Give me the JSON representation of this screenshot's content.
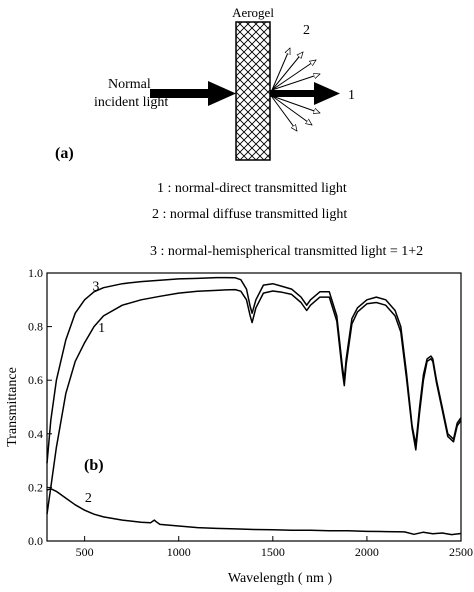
{
  "diagram": {
    "panel_label": "(a)",
    "sample_label": "Aerogel",
    "incident_label_line1": "Normal",
    "incident_label_line2": "incident light",
    "direct_ray_label": "1",
    "diffuse_ray_label": "2",
    "legend": [
      "1 : normal-direct transmitted light",
      "2 :  normal diffuse transmitted light",
      "3 : normal-hemispherical transmitted light = 1+2"
    ]
  },
  "chart_data": {
    "type": "line",
    "panel_label": "(b)",
    "title": "",
    "xlabel": "Wavelength ( nm )",
    "ylabel": "Transmittance",
    "xlim": [
      300,
      2500
    ],
    "ylim": [
      0.0,
      1.0
    ],
    "xticks": [
      500,
      1000,
      1500,
      2000,
      2500
    ],
    "yticks": [
      0.0,
      0.2,
      0.4,
      0.6,
      0.8,
      1.0
    ],
    "xtick_labels": [
      "500",
      "1000",
      "1500",
      "2000",
      "2500"
    ],
    "ytick_labels": [
      "0.0",
      "0.2",
      "0.4",
      "0.6",
      "0.8",
      "1.0"
    ],
    "grid": false,
    "series": [
      {
        "name": "3",
        "color": "#000000",
        "x": [
          300,
          320,
          350,
          400,
          450,
          500,
          550,
          600,
          700,
          800,
          900,
          1000,
          1100,
          1200,
          1250,
          1300,
          1330,
          1360,
          1380,
          1390,
          1410,
          1450,
          1500,
          1550,
          1600,
          1650,
          1680,
          1700,
          1750,
          1800,
          1840,
          1870,
          1880,
          1890,
          1920,
          1950,
          2000,
          2050,
          2100,
          2150,
          2180,
          2210,
          2240,
          2260,
          2280,
          2300,
          2320,
          2340,
          2350,
          2370,
          2400,
          2430,
          2460,
          2480,
          2500
        ],
        "y": [
          0.29,
          0.45,
          0.6,
          0.75,
          0.85,
          0.9,
          0.93,
          0.945,
          0.96,
          0.968,
          0.973,
          0.978,
          0.98,
          0.983,
          0.983,
          0.982,
          0.975,
          0.94,
          0.875,
          0.85,
          0.9,
          0.955,
          0.96,
          0.95,
          0.94,
          0.91,
          0.88,
          0.9,
          0.93,
          0.93,
          0.84,
          0.65,
          0.6,
          0.68,
          0.83,
          0.87,
          0.9,
          0.91,
          0.9,
          0.86,
          0.8,
          0.63,
          0.43,
          0.36,
          0.5,
          0.62,
          0.68,
          0.69,
          0.68,
          0.6,
          0.5,
          0.4,
          0.38,
          0.44,
          0.46
        ]
      },
      {
        "name": "1",
        "color": "#000000",
        "x": [
          300,
          320,
          350,
          400,
          450,
          500,
          550,
          600,
          700,
          800,
          900,
          1000,
          1100,
          1200,
          1250,
          1300,
          1330,
          1360,
          1380,
          1390,
          1410,
          1450,
          1500,
          1550,
          1600,
          1650,
          1680,
          1700,
          1750,
          1800,
          1840,
          1870,
          1880,
          1890,
          1920,
          1950,
          2000,
          2050,
          2100,
          2150,
          2180,
          2210,
          2240,
          2260,
          2280,
          2300,
          2320,
          2340,
          2350,
          2370,
          2400,
          2430,
          2460,
          2480,
          2500
        ],
        "y": [
          0.1,
          0.2,
          0.35,
          0.55,
          0.67,
          0.74,
          0.8,
          0.84,
          0.88,
          0.9,
          0.913,
          0.925,
          0.932,
          0.935,
          0.937,
          0.938,
          0.932,
          0.9,
          0.84,
          0.815,
          0.87,
          0.925,
          0.933,
          0.928,
          0.92,
          0.89,
          0.86,
          0.88,
          0.91,
          0.91,
          0.82,
          0.63,
          0.58,
          0.66,
          0.81,
          0.855,
          0.885,
          0.89,
          0.88,
          0.84,
          0.78,
          0.61,
          0.42,
          0.34,
          0.48,
          0.6,
          0.67,
          0.68,
          0.67,
          0.59,
          0.49,
          0.39,
          0.37,
          0.43,
          0.45
        ]
      },
      {
        "name": "2",
        "color": "#000000",
        "x": [
          300,
          320,
          350,
          400,
          450,
          500,
          550,
          600,
          700,
          800,
          850,
          870,
          880,
          900,
          1000,
          1100,
          1200,
          1300,
          1400,
          1500,
          1600,
          1700,
          1800,
          1900,
          2000,
          2100,
          2200,
          2250,
          2300,
          2350,
          2400,
          2450,
          2500
        ],
        "y": [
          0.19,
          0.195,
          0.185,
          0.16,
          0.135,
          0.115,
          0.1,
          0.09,
          0.078,
          0.07,
          0.068,
          0.078,
          0.072,
          0.062,
          0.056,
          0.05,
          0.047,
          0.045,
          0.043,
          0.042,
          0.04,
          0.04,
          0.038,
          0.038,
          0.036,
          0.035,
          0.034,
          0.025,
          0.033,
          0.027,
          0.03,
          0.024,
          0.028
        ]
      }
    ]
  }
}
